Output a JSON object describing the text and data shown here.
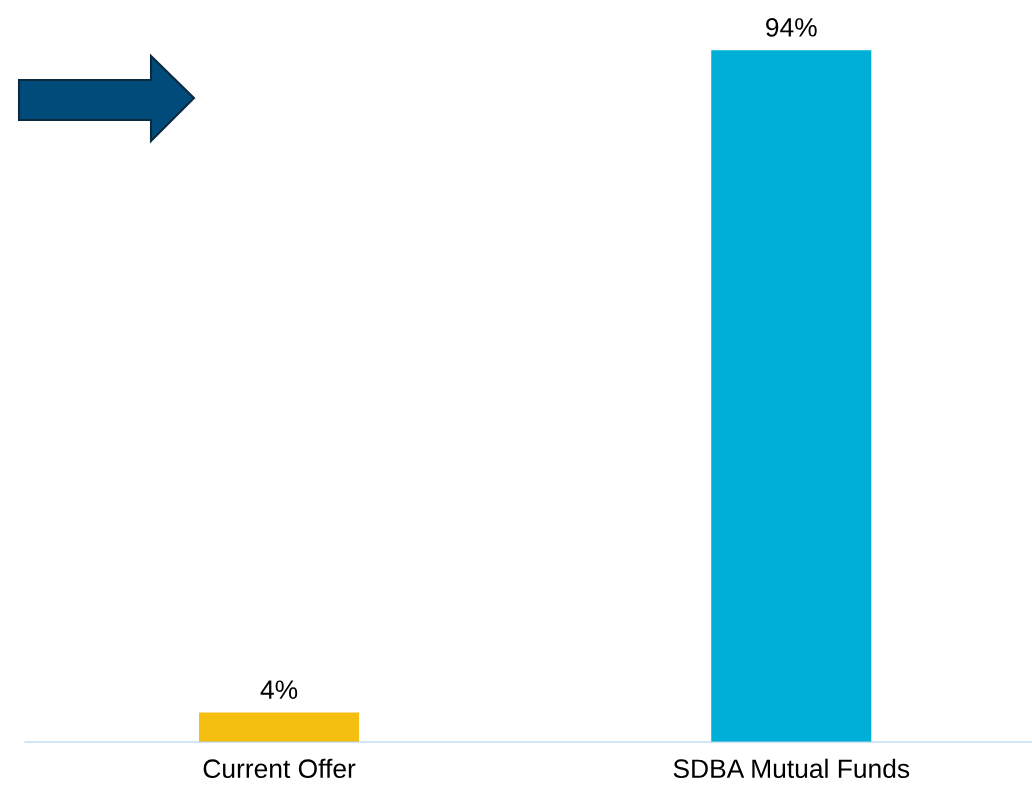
{
  "chart_data": {
    "type": "bar",
    "categories": [
      "Current Offer",
      "SDBA Mutual Funds"
    ],
    "values": [
      4,
      94
    ],
    "colors": [
      "#f5bf0f",
      "#00afd8"
    ],
    "value_labels": [
      "4%",
      "94%"
    ],
    "grid": false,
    "legend": false
  }
}
